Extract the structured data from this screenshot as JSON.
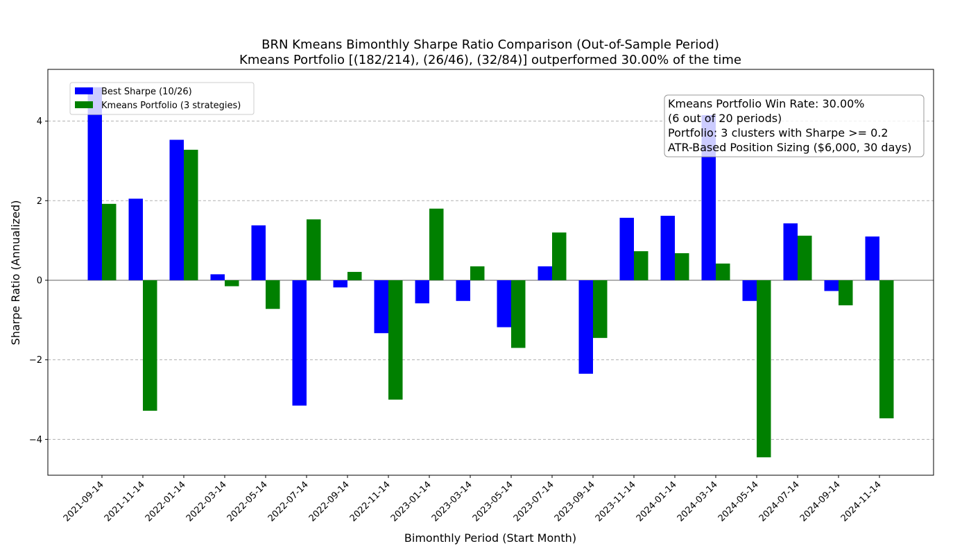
{
  "chart_data": {
    "type": "bar",
    "title_line1": "BRN Kmeans Bimonthly Sharpe Ratio Comparison (Out-of-Sample Period)",
    "title_line2": "Kmeans Portfolio [(182/214), (26/46), (32/84)] outperformed 30.00% of the time",
    "xlabel": "Bimonthly Period (Start Month)",
    "ylabel": "Sharpe Ratio (Annualized)",
    "ylim": [
      -4.9,
      5.3
    ],
    "yticks": [
      -4,
      -2,
      0,
      2,
      4
    ],
    "ytick_labels": [
      "−4",
      "−2",
      "0",
      "2",
      "4"
    ],
    "grid": "y-dashed",
    "legend_position": "top-left",
    "categories": [
      "2021-09-14",
      "2021-11-14",
      "2022-01-14",
      "2022-03-14",
      "2022-05-14",
      "2022-07-14",
      "2022-09-14",
      "2022-11-14",
      "2023-01-14",
      "2023-03-14",
      "2023-05-14",
      "2023-07-14",
      "2023-09-14",
      "2023-11-14",
      "2024-01-14",
      "2024-03-14",
      "2024-05-14",
      "2024-07-14",
      "2024-09-14",
      "2024-11-14"
    ],
    "series": [
      {
        "name": "Best Sharpe (10/26)",
        "color": "#0000ff",
        "values": [
          4.85,
          2.05,
          3.53,
          0.15,
          1.38,
          -3.15,
          -0.18,
          -1.33,
          -0.58,
          -0.52,
          -1.18,
          0.35,
          -2.35,
          1.57,
          1.62,
          4.15,
          -0.52,
          1.43,
          -0.27,
          1.1
        ]
      },
      {
        "name": "Kmeans Portfolio (3 strategies)",
        "color": "#008000",
        "values": [
          1.92,
          -3.28,
          3.28,
          -0.15,
          -0.72,
          1.53,
          0.21,
          -3.0,
          1.8,
          0.35,
          -1.7,
          1.2,
          -1.45,
          0.73,
          0.68,
          0.42,
          -4.45,
          1.12,
          -0.63,
          -3.47
        ]
      }
    ],
    "annotation": {
      "lines": [
        "Kmeans Portfolio Win Rate: 30.00%",
        "(6 out of 20 periods)",
        "Portfolio: 3 clusters with Sharpe >= 0.2",
        "ATR-Based Position Sizing ($6,000, 30 days)"
      ],
      "position": "top-right"
    }
  }
}
